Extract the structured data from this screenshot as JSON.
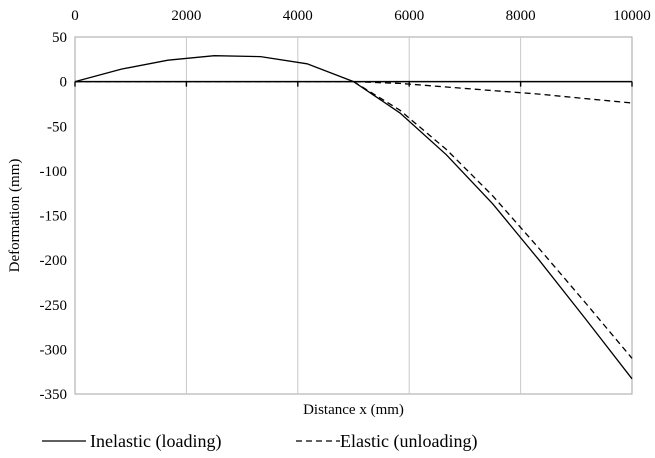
{
  "chart_data": {
    "type": "line",
    "title": "",
    "xlabel": "Distance x (mm)",
    "ylabel": "Deformation (mm)",
    "xlim": [
      0,
      10000
    ],
    "ylim": [
      -350,
      50
    ],
    "x_ticks": [
      0,
      2000,
      4000,
      6000,
      8000,
      10000
    ],
    "y_ticks": [
      50,
      0,
      -50,
      -100,
      -150,
      -200,
      -250,
      -300,
      -350
    ],
    "x_tick_labels": [
      "0",
      "2000",
      "4000",
      "6000",
      "8000",
      "10000"
    ],
    "y_tick_labels": [
      "50",
      "0",
      "-50",
      "-100",
      "-150",
      "-200",
      "-250",
      "-300",
      "-350"
    ],
    "grid": "vertical",
    "legend_position": "bottom",
    "series": [
      {
        "name": "Inelastic (loading)",
        "style": "solid",
        "color": "#000000",
        "x": [
          0,
          833,
          1667,
          2500,
          3333,
          4167,
          5000,
          5833,
          6667,
          7500,
          8333,
          9167,
          10000
        ],
        "y": [
          0,
          14,
          24,
          29,
          28,
          20,
          0,
          -35,
          -82,
          -137,
          -200,
          -266,
          -333
        ]
      },
      {
        "name": "Elastic (unloading)",
        "style": "dashed",
        "color": "#000000",
        "x": [
          0,
          833,
          1667,
          2500,
          3333,
          4167,
          5000,
          5833,
          6667,
          7500,
          8333,
          9167,
          10000
        ],
        "y": [
          0,
          0,
          0,
          0,
          0,
          0,
          0,
          -2,
          -6,
          -10,
          -14,
          -19,
          -24
        ]
      },
      {
        "name": "",
        "style": "dashed",
        "color": "#000000",
        "x": [
          5000,
          5833,
          6667,
          7500,
          8333,
          9167,
          10000
        ],
        "y": [
          0,
          -32,
          -76,
          -128,
          -187,
          -248,
          -310
        ]
      }
    ]
  }
}
